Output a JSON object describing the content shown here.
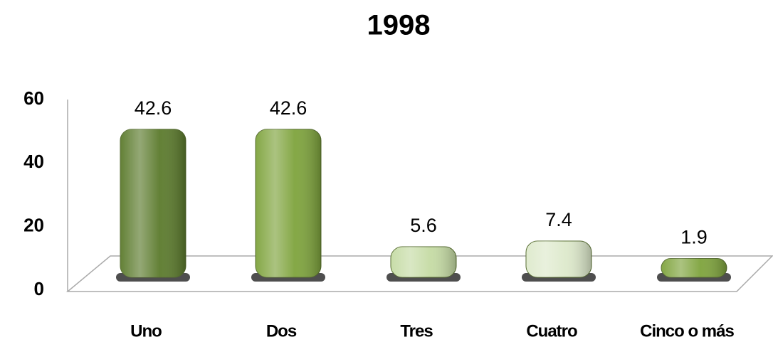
{
  "chart_data": {
    "type": "bar",
    "title": "1998",
    "categories": [
      "Uno",
      "Dos",
      "Tres",
      "Cuatro",
      "Cinco o más"
    ],
    "values": [
      42.6,
      42.6,
      5.6,
      7.4,
      1.9
    ],
    "colors": [
      "#5b7a2c",
      "#7ea33c",
      "#c5dba4",
      "#dde9cb",
      "#7ea33c"
    ],
    "ylim": [
      0,
      60
    ],
    "yticks": [
      0,
      20,
      40,
      60
    ]
  }
}
